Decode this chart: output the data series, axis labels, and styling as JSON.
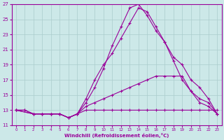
{
  "xlabel": "Windchill (Refroidissement éolien,°C)",
  "bg_color": "#cce8e8",
  "line_color": "#990099",
  "grid_color": "#aacccc",
  "xlim": [
    0,
    23
  ],
  "ylim": [
    11,
    27
  ],
  "yticks": [
    11,
    13,
    15,
    17,
    19,
    21,
    23,
    25,
    27
  ],
  "xticks": [
    0,
    1,
    2,
    3,
    4,
    5,
    6,
    7,
    8,
    9,
    10,
    11,
    12,
    13,
    14,
    15,
    16,
    17,
    18,
    19,
    20,
    21,
    22,
    23
  ],
  "line1_x": [
    0,
    1,
    2,
    3,
    4,
    5,
    6,
    7,
    8,
    9,
    10,
    11,
    12,
    13,
    14,
    15,
    16,
    17,
    18,
    19,
    20,
    21,
    22,
    23
  ],
  "line1_y": [
    13,
    13,
    12.5,
    12.5,
    12.5,
    12.5,
    12.0,
    12.5,
    13.0,
    13.0,
    13.0,
    13.0,
    13.0,
    13.0,
    13.0,
    13.0,
    13.0,
    13.0,
    13.0,
    13.0,
    13.0,
    13.0,
    13.0,
    13.0
  ],
  "line2_x": [
    0,
    1,
    2,
    3,
    4,
    5,
    6,
    7,
    8,
    9,
    10,
    11,
    12,
    13,
    14,
    15,
    16,
    17,
    18,
    19,
    20,
    21,
    22,
    23
  ],
  "line2_y": [
    13,
    13,
    12.5,
    12.5,
    12.5,
    12.5,
    12.0,
    12.5,
    14.0,
    16.0,
    18.5,
    21.5,
    24.0,
    26.5,
    27.0,
    25.5,
    23.5,
    22.0,
    20.0,
    19.0,
    17.0,
    16.0,
    14.5,
    12.5
  ],
  "line3_x": [
    0,
    2,
    3,
    4,
    5,
    6,
    7,
    8,
    9,
    10,
    11,
    12,
    13,
    14,
    15,
    16,
    17,
    18,
    19,
    20,
    21,
    22,
    23
  ],
  "line3_y": [
    13,
    12.5,
    12.5,
    12.5,
    12.5,
    12.0,
    12.5,
    14.5,
    17.0,
    19.0,
    20.5,
    22.5,
    24.5,
    26.5,
    26.0,
    24.0,
    22.0,
    19.5,
    17.0,
    15.5,
    14.0,
    13.5,
    12.5
  ],
  "line4_x": [
    0,
    2,
    3,
    4,
    5,
    6,
    7,
    8,
    9,
    10,
    11,
    12,
    13,
    14,
    15,
    16,
    17,
    18,
    19,
    20,
    21,
    22,
    23
  ],
  "line4_y": [
    13,
    12.5,
    12.5,
    12.5,
    12.5,
    12.0,
    12.5,
    13.5,
    14.0,
    14.5,
    15.0,
    15.5,
    16.0,
    16.5,
    17.0,
    17.5,
    17.5,
    17.5,
    17.5,
    15.5,
    14.5,
    14.0,
    12.5
  ]
}
